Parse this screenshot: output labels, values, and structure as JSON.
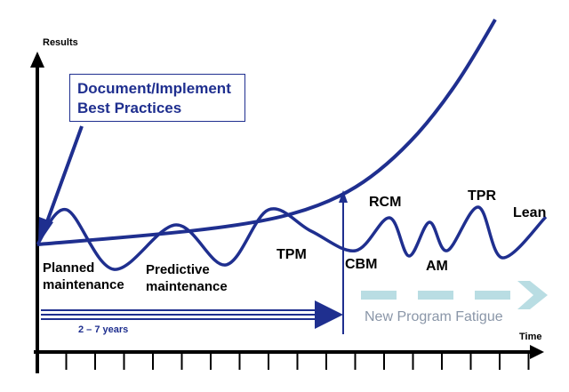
{
  "axes": {
    "y_label": "Results",
    "x_label": "Time"
  },
  "callout": {
    "line1": "Document/Implement",
    "line2": "Best Practices"
  },
  "phases": {
    "planned_line1": "Planned",
    "planned_line2": "maintenance",
    "predictive_line1": "Predictive",
    "predictive_line2": "maintenance"
  },
  "programs": {
    "tpm": "TPM",
    "cbm": "CBM",
    "rcm": "RCM",
    "am": "AM",
    "tpr": "TPR",
    "lean": "Lean"
  },
  "duration": {
    "label": "2 – 7 years"
  },
  "fatigue": {
    "label": "New Program Fatigue"
  },
  "colors": {
    "curve": "#1f2f8f",
    "axis": "#000000",
    "fatigue_arrow": "#b9dde3",
    "fatigue_text": "#8a96a8"
  }
}
